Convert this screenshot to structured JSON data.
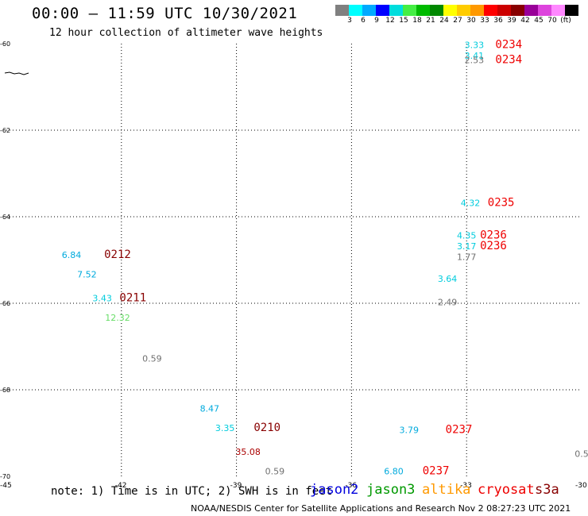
{
  "header": {
    "title": "00:00 – 11:59 UTC 10/30/2021",
    "subtitle": "12 hour collection of altimeter wave heights"
  },
  "colorbar": {
    "colors": [
      "#808080",
      "#00ffff",
      "#00aaff",
      "#0000ff",
      "#00dddd",
      "#44ee44",
      "#00bb00",
      "#008800",
      "#ffff00",
      "#ffcc00",
      "#ff9900",
      "#ff0000",
      "#cc0000",
      "#880000",
      "#990099",
      "#dd44dd",
      "#ff88ff",
      "#000000"
    ],
    "ticks": [
      "3",
      "6",
      "9",
      "12",
      "15",
      "18",
      "21",
      "24",
      "27",
      "30",
      "33",
      "36",
      "39",
      "42",
      "45",
      "70",
      "(ft)"
    ]
  },
  "chart_data": {
    "type": "scatter",
    "xlim": [
      -45,
      -30
    ],
    "ylim": [
      -70,
      -60
    ],
    "x_ticks": [
      "-45",
      "-42",
      "-39",
      "-36",
      "-33",
      "-30"
    ],
    "y_ticks": [
      "-60",
      "-62",
      "-64",
      "-66",
      "-68",
      "-70"
    ],
    "grid": true,
    "swh_points": [
      {
        "x": -32.8,
        "y": -60.1,
        "label": "3.33",
        "color": "#00ccdd"
      },
      {
        "x": -32.8,
        "y": -60.35,
        "label": "3.41",
        "color": "#00ccdd"
      },
      {
        "x": -32.8,
        "y": -60.45,
        "label": "2.53",
        "color": "#707070"
      },
      {
        "x": -32.9,
        "y": -63.75,
        "label": "4.32",
        "color": "#00ccdd"
      },
      {
        "x": -33.0,
        "y": -64.5,
        "label": "4.35",
        "color": "#00ccdd"
      },
      {
        "x": -33.0,
        "y": -64.75,
        "label": "3.17",
        "color": "#00ccdd"
      },
      {
        "x": -33.0,
        "y": -65.0,
        "label": "1.77",
        "color": "#707070"
      },
      {
        "x": -33.5,
        "y": -65.5,
        "label": "3.64",
        "color": "#00ccdd"
      },
      {
        "x": -33.5,
        "y": -66.05,
        "label": "2.49",
        "color": "#707070"
      },
      {
        "x": -43.3,
        "y": -64.95,
        "label": "6.84",
        "color": "#00aadd"
      },
      {
        "x": -42.9,
        "y": -65.4,
        "label": "7.52",
        "color": "#00aadd"
      },
      {
        "x": -42.5,
        "y": -65.95,
        "label": "3.43",
        "color": "#00ccdd"
      },
      {
        "x": -42.1,
        "y": -66.4,
        "label": "12.32",
        "color": "#66dd66"
      },
      {
        "x": -41.2,
        "y": -67.35,
        "label": "0.59",
        "color": "#707070"
      },
      {
        "x": -39.7,
        "y": -68.5,
        "label": "8.47",
        "color": "#00aadd"
      },
      {
        "x": -39.3,
        "y": -68.95,
        "label": "3.35",
        "color": "#00ccdd"
      },
      {
        "x": -38.7,
        "y": -69.5,
        "label": "35.08",
        "color": "#aa0000"
      },
      {
        "x": -38.0,
        "y": -69.95,
        "label": "0.59",
        "color": "#707070"
      },
      {
        "x": -34.5,
        "y": -69.0,
        "label": "3.79",
        "color": "#00aadd"
      },
      {
        "x": -34.9,
        "y": -69.95,
        "label": "6.80",
        "color": "#00aadd"
      },
      {
        "x": -30.0,
        "y": -69.55,
        "label": "0.5",
        "color": "#707070"
      }
    ],
    "pass_labels": [
      {
        "x": -31.9,
        "y": -60.1,
        "label": "0234",
        "color": "#ee0000"
      },
      {
        "x": -31.9,
        "y": -60.45,
        "label": "0234",
        "color": "#ee0000"
      },
      {
        "x": -32.1,
        "y": -63.75,
        "label": "0235",
        "color": "#ee0000"
      },
      {
        "x": -32.3,
        "y": -64.5,
        "label": "0236",
        "color": "#ee0000"
      },
      {
        "x": -32.3,
        "y": -64.75,
        "label": "0236",
        "color": "#ee0000"
      },
      {
        "x": -42.1,
        "y": -64.95,
        "label": "0212",
        "color": "#880000"
      },
      {
        "x": -41.7,
        "y": -65.95,
        "label": "0211",
        "color": "#880000"
      },
      {
        "x": -38.2,
        "y": -68.95,
        "label": "0210",
        "color": "#880000"
      },
      {
        "x": -33.2,
        "y": -69.0,
        "label": "0237",
        "color": "#ee0000"
      },
      {
        "x": -33.8,
        "y": -69.95,
        "label": "0237",
        "color": "#ee0000"
      }
    ]
  },
  "footer": {
    "note": "note: 1) Time is in UTC; 2) SWH is in feet",
    "missions": [
      {
        "name": "jason2",
        "color": "#0000dd"
      },
      {
        "name": "jason3",
        "color": "#009900"
      },
      {
        "name": "altika",
        "color": "#ff9900"
      },
      {
        "name": "cryosat",
        "color": "#ee0000"
      },
      {
        "name": "s3a",
        "color": "#880000"
      }
    ],
    "credit": "NOAA/NESDIS Center for Satellite Applications and Research    Nov  2 08:27:23 UTC 2021"
  }
}
